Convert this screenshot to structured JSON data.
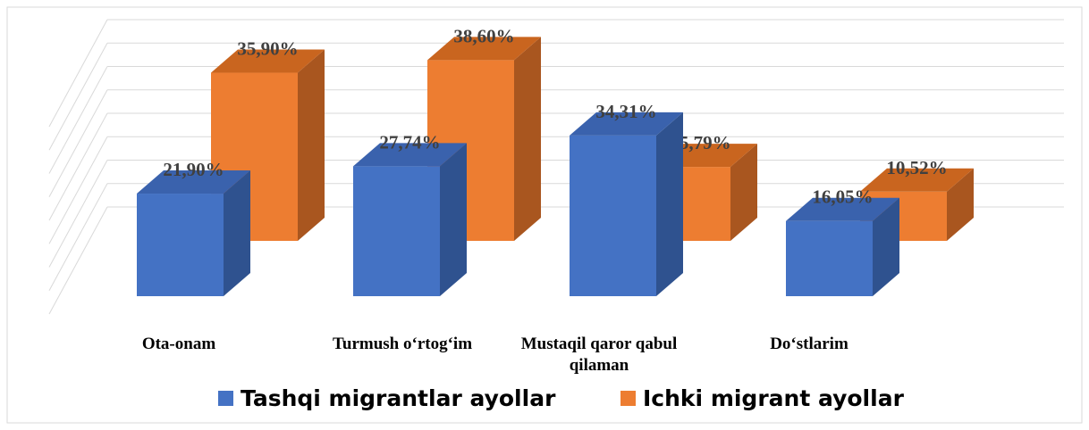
{
  "chart_data": {
    "type": "bar3d",
    "categories": [
      "Ota-onam",
      "Turmush o‘rtog‘im",
      "Mustaqil qaror qabul qilaman",
      "Do‘stlarim"
    ],
    "series": [
      {
        "name": "Tashqi migrantlar ayollar",
        "color": "#4472c4",
        "side": "#2f528f",
        "top": "#3a62ad",
        "values": [
          21.9,
          27.74,
          34.31,
          16.05
        ],
        "value_labels": [
          "21,90%",
          "27,74%",
          "34,31%",
          "16,05%"
        ]
      },
      {
        "name": "Ichki migrant ayollar",
        "color": "#ed7d31",
        "side": "#a9561f",
        "top": "#c9651f",
        "values": [
          35.9,
          38.6,
          15.79,
          10.52
        ],
        "value_labels": [
          "35,90%",
          "38,60%",
          "15,79%",
          "10,52%"
        ]
      }
    ],
    "ylim": [
      0,
      40
    ],
    "yticks": [
      0,
      5,
      10,
      15,
      20,
      25,
      30,
      35,
      40
    ],
    "grid": true
  }
}
